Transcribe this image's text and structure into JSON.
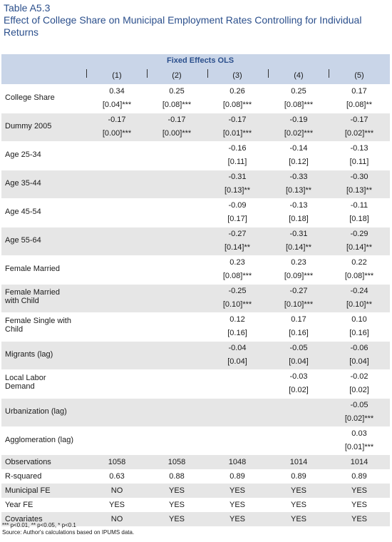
{
  "title": {
    "line1": "Table A5.3",
    "line2": "Effect of College Share on Municipal Employment Rates Controlling for Individual",
    "line3": "Returns"
  },
  "header": {
    "band": "Fixed Effects OLS",
    "columns": [
      "(1)",
      "(2)",
      "(3)",
      "(4)",
      "(5)"
    ]
  },
  "rows": [
    {
      "label": [
        "College Share"
      ],
      "shaded": false,
      "cells": [
        [
          "0.34",
          "[0.04]***"
        ],
        [
          "0.25",
          "[0.08]***"
        ],
        [
          "0.26",
          "[0.08]***"
        ],
        [
          "0.25",
          "[0.08]***"
        ],
        [
          "0.17",
          "[0.08]**"
        ]
      ]
    },
    {
      "label": [
        "Dummy 2005"
      ],
      "shaded": true,
      "cells": [
        [
          "-0.17",
          "[0.00]***"
        ],
        [
          "-0.17",
          "[0.00]***"
        ],
        [
          "-0.17",
          "[0.01]***"
        ],
        [
          "-0.19",
          "[0.02]***"
        ],
        [
          "-0.17",
          "[0.02]***"
        ]
      ]
    },
    {
      "label": [
        "Age 25-34"
      ],
      "shaded": false,
      "cells": [
        [
          "",
          ""
        ],
        [
          "",
          ""
        ],
        [
          "-0.16",
          "[0.11]"
        ],
        [
          "-0.14",
          "[0.12]"
        ],
        [
          "-0.13",
          "[0.11]"
        ]
      ]
    },
    {
      "label": [
        "Age 35-44"
      ],
      "shaded": true,
      "cells": [
        [
          "",
          ""
        ],
        [
          "",
          ""
        ],
        [
          "-0.31",
          "[0.13]**"
        ],
        [
          "-0.33",
          "[0.13]**"
        ],
        [
          "-0.30",
          "[0.13]**"
        ]
      ]
    },
    {
      "label": [
        "Age 45-54"
      ],
      "shaded": false,
      "cells": [
        [
          "",
          ""
        ],
        [
          "",
          ""
        ],
        [
          "-0.09",
          "[0.17]"
        ],
        [
          "-0.13",
          "[0.18]"
        ],
        [
          "-0.11",
          "[0.18]"
        ]
      ]
    },
    {
      "label": [
        "Age 55-64"
      ],
      "shaded": true,
      "cells": [
        [
          "",
          ""
        ],
        [
          "",
          ""
        ],
        [
          "-0.27",
          "[0.14]**"
        ],
        [
          "-0.31",
          "[0.14]**"
        ],
        [
          "-0.29",
          "[0.14]**"
        ]
      ]
    },
    {
      "label": [
        "Female Married"
      ],
      "shaded": false,
      "cells": [
        [
          "",
          ""
        ],
        [
          "",
          ""
        ],
        [
          "0.23",
          "[0.08]***"
        ],
        [
          "0.23",
          "[0.09]***"
        ],
        [
          "0.22",
          "[0.08]***"
        ]
      ]
    },
    {
      "label": [
        "Female Married",
        "with Child"
      ],
      "shaded": true,
      "cells": [
        [
          "",
          ""
        ],
        [
          "",
          ""
        ],
        [
          "-0.25",
          "[0.10]***"
        ],
        [
          "-0.27",
          "[0.10]***"
        ],
        [
          "-0.24",
          "[0.10]**"
        ]
      ]
    },
    {
      "label": [
        "Female Single with",
        "Child"
      ],
      "shaded": false,
      "cells": [
        [
          "",
          ""
        ],
        [
          "",
          ""
        ],
        [
          "0.12",
          "[0.16]"
        ],
        [
          "0.17",
          "[0.16]"
        ],
        [
          "0.10",
          "[0.16]"
        ]
      ]
    },
    {
      "label": [
        "Migrants (lag)"
      ],
      "shaded": true,
      "cells": [
        [
          "",
          ""
        ],
        [
          "",
          ""
        ],
        [
          "-0.04",
          "[0.04]"
        ],
        [
          "-0.05",
          "[0.04]"
        ],
        [
          "-0.06",
          "[0.04]"
        ]
      ]
    },
    {
      "label": [
        "Local Labor",
        "Demand"
      ],
      "shaded": false,
      "cells": [
        [
          "",
          ""
        ],
        [
          "",
          ""
        ],
        [
          "",
          ""
        ],
        [
          "-0.03",
          "[0.02]"
        ],
        [
          "-0.02",
          "[0.02]"
        ]
      ]
    },
    {
      "label": [
        "Urbanization (lag)"
      ],
      "shaded": true,
      "cells": [
        [
          "",
          ""
        ],
        [
          "",
          ""
        ],
        [
          "",
          ""
        ],
        [
          "",
          ""
        ],
        [
          "-0.05",
          "[0.02]***"
        ]
      ]
    },
    {
      "label": [
        "Agglomeration (lag)"
      ],
      "shaded": false,
      "cells": [
        [
          "",
          ""
        ],
        [
          "",
          ""
        ],
        [
          "",
          ""
        ],
        [
          "",
          ""
        ],
        [
          "0.03",
          "[0.01]***"
        ]
      ]
    }
  ],
  "stats": [
    {
      "label": "Observations",
      "shaded": true,
      "cells": [
        "1058",
        "1058",
        "1048",
        "1014",
        "1014"
      ]
    },
    {
      "label": "R-squared",
      "shaded": false,
      "cells": [
        "0.63",
        "0.88",
        "0.89",
        "0.89",
        "0.89"
      ]
    },
    {
      "label": "Municipal FE",
      "shaded": true,
      "cells": [
        "NO",
        "YES",
        "YES",
        "YES",
        "YES"
      ]
    },
    {
      "label": "Year FE",
      "shaded": false,
      "cells": [
        "YES",
        "YES",
        "YES",
        "YES",
        "YES"
      ]
    },
    {
      "label": "Covariates",
      "shaded": true,
      "cells": [
        "NO",
        "YES",
        "YES",
        "YES",
        "YES"
      ]
    }
  ],
  "footnotes": {
    "significance": "*** p<0.01, ** p<0.05, * p<0.1",
    "source": "Source: Author's calculations based on IPUMS data."
  }
}
